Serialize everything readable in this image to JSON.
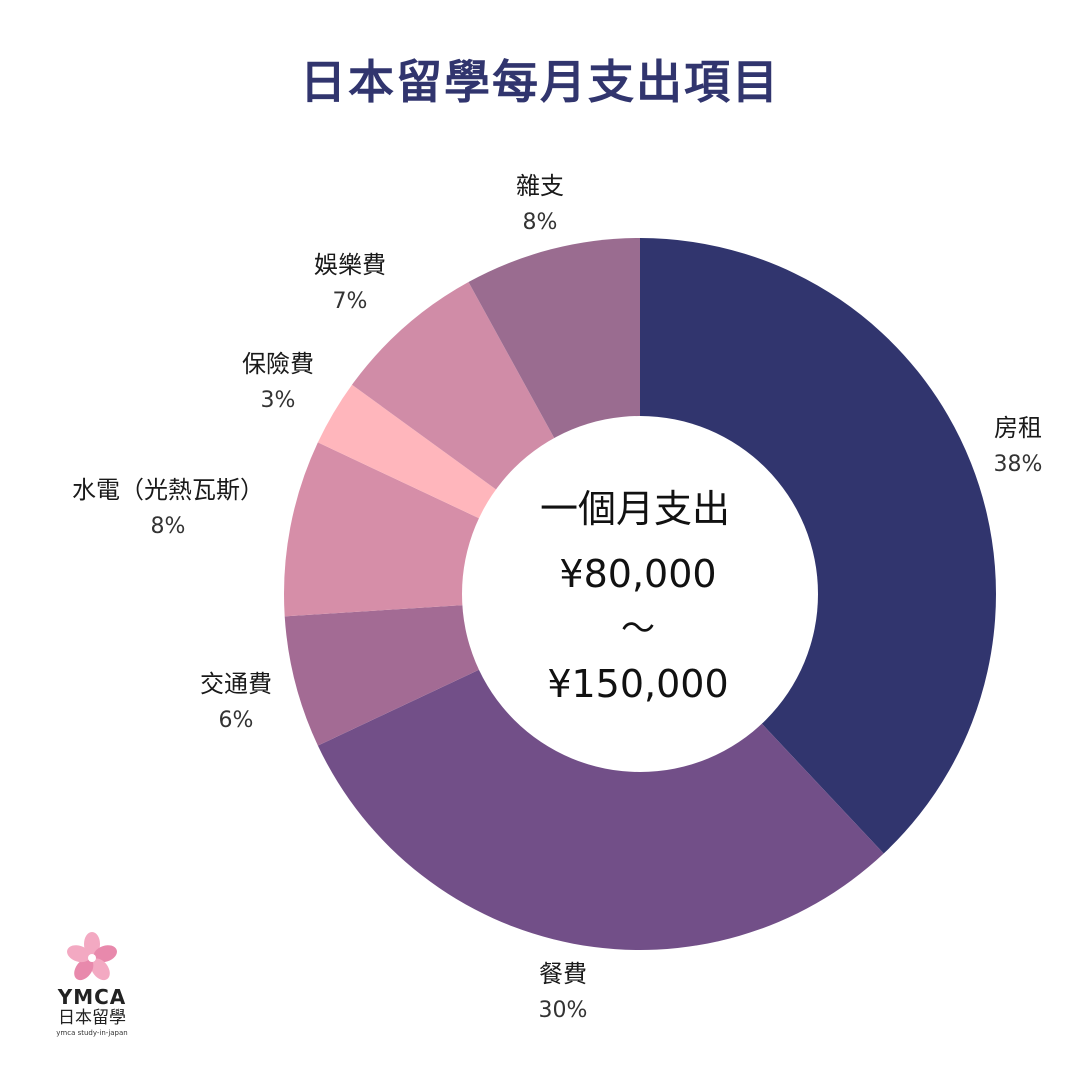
{
  "title": "日本留學每月支出項目",
  "logo": {
    "brand": "YMCA",
    "sub": "日本留學",
    "tagline": "ymca study-in-japan",
    "flower_colors": [
      "#f3a9c2",
      "#e889ac"
    ]
  },
  "center": {
    "line1": "一個月支出",
    "line2": "¥80,000",
    "line3": "～",
    "line4": "¥150,000"
  },
  "chart_data": {
    "type": "pie",
    "donut": true,
    "title": "日本留學每月支出項目",
    "slices": [
      {
        "label": "房租",
        "pct_label": "38%",
        "value": 38,
        "color": "#31356e"
      },
      {
        "label": "餐費",
        "pct_label": "30%",
        "value": 30,
        "color": "#724f88"
      },
      {
        "label": "交通費",
        "pct_label": "6%",
        "value": 6,
        "color": "#a36b94"
      },
      {
        "label": "水電（光熱瓦斯）",
        "pct_label": "8%",
        "value": 8,
        "color": "#d68ea8"
      },
      {
        "label": "保險費",
        "pct_label": "3%",
        "value": 3,
        "color": "#ffb6bc"
      },
      {
        "label": "娛樂費",
        "pct_label": "7%",
        "value": 7,
        "color": "#d08ca7"
      },
      {
        "label": "雜支",
        "pct_label": "8%",
        "value": 8,
        "color": "#9a6c90"
      }
    ]
  }
}
